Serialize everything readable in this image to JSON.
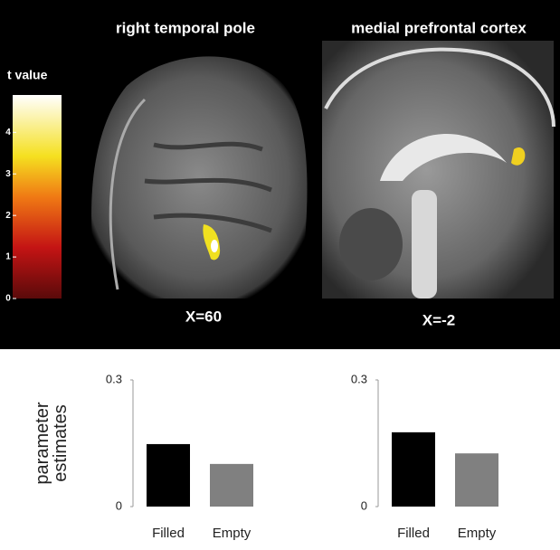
{
  "panels": [
    {
      "title": "right temporal pole",
      "slice": "X=60"
    },
    {
      "title": "medial prefrontal cortex",
      "slice": "X=-2"
    }
  ],
  "colorbar": {
    "label": "t value",
    "lim": [
      0,
      4.9
    ],
    "ticks": [
      0,
      1,
      2,
      3,
      4
    ]
  },
  "chart_data": [
    {
      "type": "bar",
      "y_label": "parameter estimates",
      "categories": [
        "Filled",
        "Empty"
      ],
      "values": [
        0.148,
        0.101
      ],
      "colors": [
        "#000000",
        "#808080"
      ],
      "ylim": [
        0,
        0.3
      ],
      "yticks": [
        0,
        0.3
      ]
    },
    {
      "type": "bar",
      "categories": [
        "Filled",
        "Empty"
      ],
      "values": [
        0.176,
        0.126
      ],
      "colors": [
        "#000000",
        "#808080"
      ],
      "ylim": [
        0,
        0.3
      ],
      "yticks": [
        0,
        0.3
      ]
    }
  ]
}
